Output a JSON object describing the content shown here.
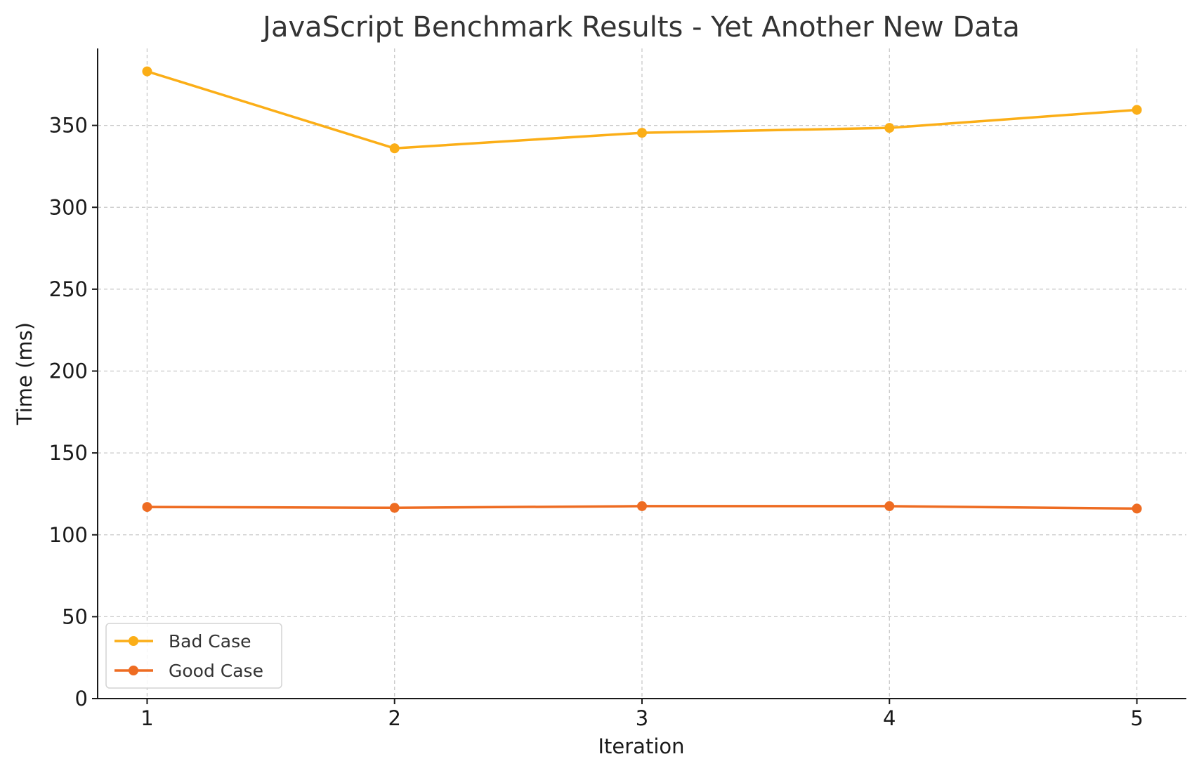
{
  "chart_data": {
    "type": "line",
    "title": "JavaScript Benchmark Results - Yet Another New Data",
    "xlabel": "Iteration",
    "ylabel": "Time (ms)",
    "x": [
      1,
      2,
      3,
      4,
      5
    ],
    "x_ticks": [
      "1",
      "2",
      "3",
      "4",
      "5"
    ],
    "y_ticks": [
      "0",
      "50",
      "100",
      "150",
      "200",
      "250",
      "300",
      "350"
    ],
    "xlim": [
      0.8,
      5.2
    ],
    "ylim": [
      0,
      397
    ],
    "grid": true,
    "legend_position": "lower-left",
    "series": [
      {
        "name": "Bad Case",
        "color": "#FBAE17",
        "marker": "circle",
        "values": [
          383,
          336,
          345.5,
          348.5,
          359.5
        ]
      },
      {
        "name": "Good Case",
        "color": "#EE6C22",
        "marker": "circle",
        "values": [
          117,
          116.5,
          117.5,
          117.5,
          116
        ]
      }
    ]
  }
}
